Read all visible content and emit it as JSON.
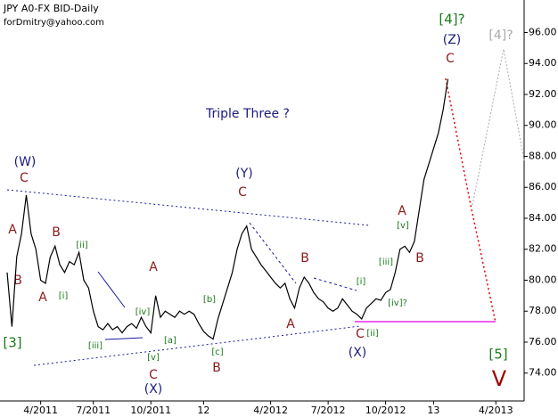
{
  "chart_data": {
    "type": "line",
    "title": "JPY A0-FX BID-Daily",
    "subtitle": "forDmitry@yahoo.com",
    "categories": [
      null,
      null,
      null,
      null,
      null,
      null,
      null,
      "4/2011",
      null,
      null,
      null,
      null,
      null,
      null,
      null,
      null,
      null,
      null,
      "7/2011",
      null,
      null,
      null,
      null,
      null,
      null,
      null,
      null,
      null,
      null,
      null,
      "10/2011",
      null,
      null,
      null,
      null,
      null,
      null,
      null,
      null,
      null,
      null,
      "12",
      null,
      null,
      null,
      null,
      null,
      null,
      null,
      null,
      null,
      null,
      null,
      null,
      null,
      "4/2012",
      null,
      null,
      null,
      null,
      null,
      null,
      null,
      null,
      null,
      null,
      null,
      "7/2012",
      null,
      null,
      null,
      null,
      null,
      null,
      null,
      null,
      null,
      null,
      null,
      "10/2012",
      null,
      null,
      null,
      null,
      null,
      null,
      null,
      null,
      null,
      "13",
      null,
      null,
      null,
      null,
      null,
      null,
      null,
      null,
      null,
      null,
      null,
      null,
      "4/2013",
      null,
      null,
      null,
      null,
      null,
      null
    ],
    "series": [
      {
        "name": "JPY A0-FX BID",
        "color": "#000000",
        "values": [
          80.5,
          77.0,
          81.5,
          83.0,
          85.5,
          83.0,
          82.0,
          80.0,
          79.8,
          81.5,
          82.2,
          81.0,
          80.5,
          81.2,
          81.0,
          81.8,
          80.0,
          79.5,
          78.0,
          77.0,
          76.8,
          77.2,
          76.8,
          77.0,
          76.6,
          77.0,
          77.2,
          76.9,
          77.6,
          77.0,
          76.6,
          79.0,
          77.6,
          78.0,
          77.8,
          77.6,
          78.0,
          77.8,
          78.0,
          77.8,
          77.2,
          76.7,
          76.4,
          76.2,
          77.5,
          78.5,
          79.5,
          80.5,
          82.0,
          83.0,
          83.5,
          82.0,
          81.5,
          81.0,
          80.6,
          80.2,
          79.8,
          79.5,
          79.8,
          78.8,
          78.2,
          79.5,
          80.2,
          79.8,
          79.2,
          78.8,
          78.6,
          78.2,
          78.0,
          78.2,
          78.8,
          78.4,
          78.0,
          77.8,
          77.5,
          78.2,
          78.5,
          78.8,
          78.7,
          79.2,
          79.4,
          80.5,
          82.0,
          82.2,
          81.8,
          82.5,
          84.5,
          86.5,
          87.5,
          88.5,
          89.5,
          91.0,
          93.0,
          null,
          null,
          null,
          null,
          null,
          null,
          null,
          null,
          null,
          null,
          null,
          null,
          null,
          null,
          null,
          null
        ]
      }
    ],
    "ylim": [
      72.2,
      98.1
    ],
    "yticks": [
      {
        "value": 74,
        "label": "74.00"
      },
      {
        "value": 76,
        "label": "76.00"
      },
      {
        "value": 78,
        "label": "78.00"
      },
      {
        "value": 80,
        "label": "80.00"
      },
      {
        "value": 82,
        "label": "82.00"
      },
      {
        "value": 84,
        "label": "84.00"
      },
      {
        "value": 86,
        "label": "86.00"
      },
      {
        "value": 88,
        "label": "88.00"
      },
      {
        "value": 90,
        "label": "90.00"
      },
      {
        "value": 92,
        "label": "92.00"
      },
      {
        "value": 94,
        "label": "94.00"
      },
      {
        "value": 96,
        "label": "96.00"
      }
    ],
    "grid": false,
    "annotations": [
      "[4]?",
      "(Z)",
      "C",
      "[4]?",
      "Triple Three ?",
      "(W)",
      "C",
      "A",
      "B",
      "B",
      "A",
      "[ii]",
      "[i]",
      "[3]",
      "[iii]",
      "[iv]",
      "[v]",
      "C",
      "(X)",
      "A",
      "[a]",
      "[b]",
      "[c]",
      "B",
      "(Y)",
      "C",
      "A",
      "B",
      "[i]",
      "[ii]",
      "C",
      "(X)",
      "[iii]",
      "[iv]?",
      "[v]",
      "A",
      "B",
      "[5]",
      "V"
    ]
  }
}
